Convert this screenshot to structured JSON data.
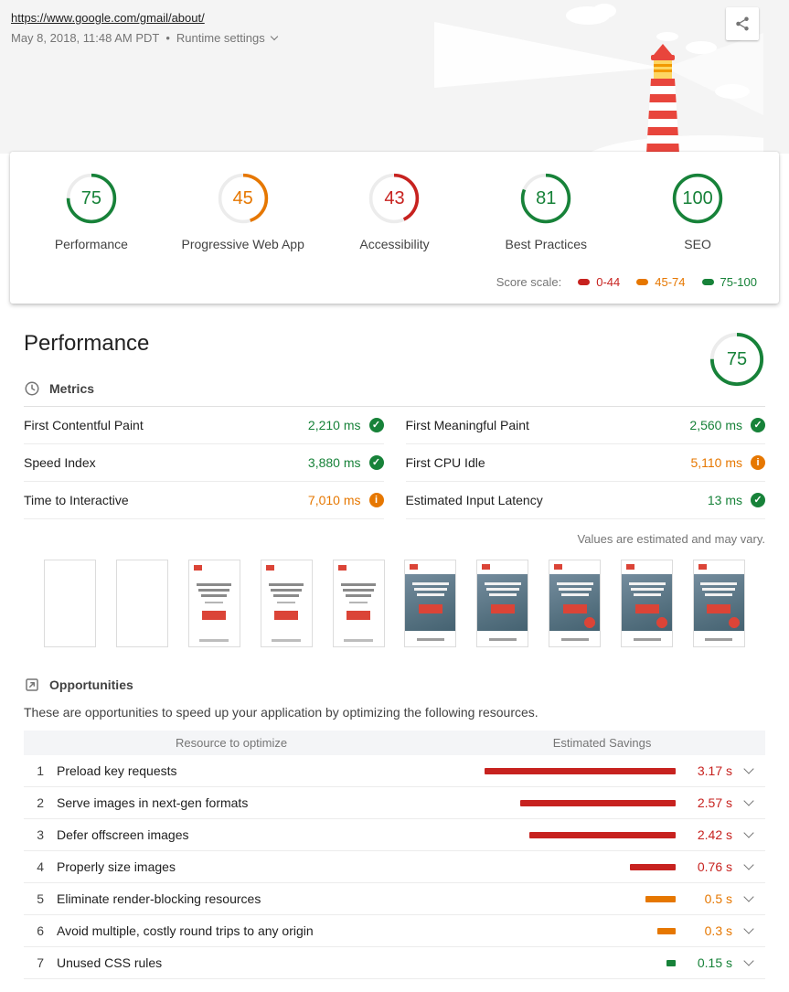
{
  "colors": {
    "pass": "#178239",
    "average": "#e67700",
    "fail": "#c7221f"
  },
  "header": {
    "url": "https://www.google.com/gmail/about/",
    "date": "May 8, 2018, 11:48 AM PDT",
    "bullet": "•",
    "runtime_settings": "Runtime settings"
  },
  "scorecard": {
    "gauges": [
      {
        "score": "75",
        "label": "Performance",
        "color": "#178239"
      },
      {
        "score": "45",
        "label": "Progressive Web App",
        "color": "#e67700"
      },
      {
        "score": "43",
        "label": "Accessibility",
        "color": "#c7221f"
      },
      {
        "score": "81",
        "label": "Best Practices",
        "color": "#178239"
      },
      {
        "score": "100",
        "label": "SEO",
        "color": "#178239"
      }
    ],
    "scale": {
      "label": "Score scale:",
      "ranges": [
        {
          "label": "0-44",
          "color": "#c7221f"
        },
        {
          "label": "45-74",
          "color": "#e67700"
        },
        {
          "label": "75-100",
          "color": "#178239"
        }
      ]
    }
  },
  "performance": {
    "title": "Performance",
    "gauge": {
      "score": "75",
      "color": "#178239"
    },
    "metrics": {
      "title": "Metrics",
      "items": [
        {
          "label": "First Contentful Paint",
          "value": "2,210 ms",
          "status": "pass"
        },
        {
          "label": "First Meaningful Paint",
          "value": "2,560 ms",
          "status": "pass"
        },
        {
          "label": "Speed Index",
          "value": "3,880 ms",
          "status": "pass"
        },
        {
          "label": "First CPU Idle",
          "value": "5,110 ms",
          "status": "average"
        },
        {
          "label": "Time to Interactive",
          "value": "7,010 ms",
          "status": "average"
        },
        {
          "label": "Estimated Input Latency",
          "value": "13 ms",
          "status": "pass"
        }
      ],
      "disclaimer": "Values are estimated and may vary."
    },
    "filmstrip": {
      "frames": [
        "blank",
        "blank",
        "text",
        "text",
        "text",
        "image",
        "image",
        "image-fab",
        "image-fab",
        "image-fab"
      ]
    }
  },
  "opportunities": {
    "title": "Opportunities",
    "description": "These are opportunities to speed up your application by optimizing the following resources.",
    "columns": {
      "resource": "Resource to optimize",
      "savings": "Estimated Savings"
    },
    "items": [
      {
        "num": "1",
        "label": "Preload key requests",
        "savings": "3.17 s",
        "seconds": 3.17,
        "severity": "fail"
      },
      {
        "num": "2",
        "label": "Serve images in next-gen formats",
        "savings": "2.57 s",
        "seconds": 2.57,
        "severity": "fail"
      },
      {
        "num": "3",
        "label": "Defer offscreen images",
        "savings": "2.42 s",
        "seconds": 2.42,
        "severity": "fail"
      },
      {
        "num": "4",
        "label": "Properly size images",
        "savings": "0.76 s",
        "seconds": 0.76,
        "severity": "fail"
      },
      {
        "num": "5",
        "label": "Eliminate render-blocking resources",
        "savings": "0.5 s",
        "seconds": 0.5,
        "severity": "average"
      },
      {
        "num": "6",
        "label": "Avoid multiple, costly round trips to any origin",
        "savings": "0.3 s",
        "seconds": 0.3,
        "severity": "average"
      },
      {
        "num": "7",
        "label": "Unused CSS rules",
        "savings": "0.15 s",
        "seconds": 0.15,
        "severity": "pass"
      }
    ]
  }
}
